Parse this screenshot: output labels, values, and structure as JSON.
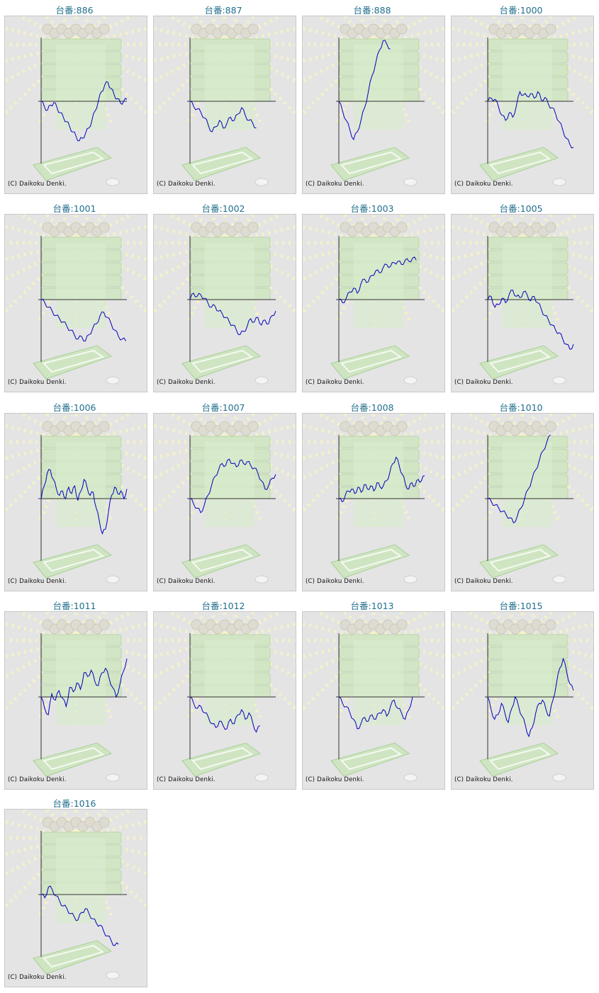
{
  "copyright": "(C) Daikoku Denki.",
  "colors": {
    "title": "#1f6e8c",
    "line": "#0000bb",
    "axis": "#333333",
    "panel_bg": "#e4e4e4"
  },
  "chart_data": [
    {
      "type": "line",
      "title": "台番:886",
      "ylim": [
        -100,
        100
      ],
      "values": [
        0,
        -8,
        -14,
        -6,
        -2,
        -10,
        -18,
        -25,
        -32,
        -40,
        -48,
        -55,
        -62,
        -58,
        -50,
        -42,
        -30,
        -15,
        0,
        15,
        25,
        30,
        20,
        10,
        4,
        -3,
        0,
        3
      ]
    },
    {
      "type": "line",
      "title": "台番:887",
      "ylim": [
        -100,
        100
      ],
      "values": [
        0,
        -8,
        -12,
        -18,
        -26,
        -38,
        -48,
        -40,
        -30,
        -42,
        -35,
        -25,
        -30,
        -20,
        -10,
        -22,
        -30,
        -34,
        -42
      ]
    },
    {
      "type": "line",
      "title": "台番:888",
      "ylim": [
        -100,
        100
      ],
      "values": [
        0,
        -15,
        -30,
        -45,
        -60,
        -48,
        -30,
        -10,
        15,
        40,
        60,
        80,
        95,
        90,
        82
      ]
    },
    {
      "type": "line",
      "title": "台番:1000",
      "ylim": [
        -100,
        100
      ],
      "values": [
        0,
        5,
        3,
        -8,
        -22,
        -30,
        -18,
        -25,
        -8,
        15,
        10,
        8,
        12,
        5,
        15,
        2,
        6,
        -5,
        -10,
        -20,
        -32,
        -45,
        -58,
        -68,
        -72
      ]
    },
    {
      "type": "line",
      "title": "台番:1001",
      "ylim": [
        -100,
        100
      ],
      "values": [
        0,
        -5,
        -12,
        -18,
        -25,
        -30,
        -35,
        -42,
        -48,
        -55,
        -62,
        -58,
        -65,
        -55,
        -45,
        -38,
        -25,
        -20,
        -28,
        -38,
        -48,
        -58,
        -62,
        -65
      ]
    },
    {
      "type": "line",
      "title": "台番:1002",
      "ylim": [
        -100,
        100
      ],
      "values": [
        0,
        10,
        5,
        8,
        2,
        -5,
        -12,
        -10,
        -18,
        -22,
        -28,
        -35,
        -40,
        -48,
        -55,
        -50,
        -42,
        -30,
        -35,
        -28,
        -40,
        -32,
        -38,
        -25,
        -18
      ]
    },
    {
      "type": "line",
      "title": "台番:1003",
      "ylim": [
        -100,
        100
      ],
      "values": [
        0,
        -5,
        2,
        12,
        18,
        10,
        25,
        32,
        28,
        38,
        45,
        42,
        50,
        55,
        52,
        58,
        60,
        55,
        62,
        60,
        65,
        62
      ]
    },
    {
      "type": "line",
      "title": "台番:1005",
      "ylim": [
        -100,
        100
      ],
      "values": [
        0,
        5,
        -12,
        -8,
        2,
        -5,
        8,
        15,
        5,
        3,
        12,
        8,
        -2,
        5,
        -5,
        -15,
        -25,
        -32,
        -40,
        -48,
        -52,
        -62,
        -70,
        -78,
        -70
      ]
    },
    {
      "type": "line",
      "title": "台番:1006",
      "ylim": [
        -100,
        100
      ],
      "values": [
        0,
        20,
        40,
        45,
        30,
        15,
        5,
        12,
        0,
        18,
        8,
        20,
        -3,
        12,
        30,
        18,
        5,
        10,
        -15,
        -35,
        -55,
        -48,
        -20,
        5,
        18,
        8,
        12,
        0,
        15
      ]
    },
    {
      "type": "line",
      "title": "台番:1007",
      "ylim": [
        -100,
        100
      ],
      "values": [
        0,
        -8,
        -15,
        -22,
        -10,
        5,
        20,
        35,
        45,
        55,
        52,
        62,
        55,
        50,
        60,
        55,
        58,
        52,
        48,
        40,
        28,
        15,
        20,
        32,
        38
      ]
    },
    {
      "type": "line",
      "title": "台番:1008",
      "ylim": [
        -100,
        100
      ],
      "values": [
        0,
        -5,
        5,
        12,
        15,
        8,
        18,
        10,
        22,
        15,
        20,
        12,
        25,
        18,
        20,
        28,
        40,
        55,
        65,
        52,
        38,
        22,
        15,
        25,
        20,
        30,
        28,
        36
      ]
    },
    {
      "type": "line",
      "title": "台番:1010",
      "ylim": [
        -100,
        100
      ],
      "values": [
        0,
        -5,
        -10,
        -15,
        -20,
        -25,
        -30,
        -38,
        -28,
        -15,
        0,
        15,
        30,
        45,
        60,
        75,
        88,
        100
      ]
    },
    {
      "type": "line",
      "title": "台番:1011",
      "ylim": [
        -100,
        100
      ],
      "values": [
        0,
        -18,
        -28,
        5,
        -5,
        10,
        -2,
        -15,
        15,
        8,
        22,
        12,
        38,
        32,
        42,
        25,
        18,
        38,
        45,
        30,
        15,
        0,
        18,
        40,
        60
      ]
    },
    {
      "type": "line",
      "title": "台番:1012",
      "ylim": [
        -100,
        100
      ],
      "values": [
        0,
        -10,
        -18,
        -15,
        -25,
        -32,
        -42,
        -48,
        -38,
        -45,
        -50,
        -35,
        -42,
        -28,
        -20,
        -35,
        -25,
        -40,
        -55,
        -45
      ]
    },
    {
      "type": "line",
      "title": "台番:1013",
      "ylim": [
        -100,
        100
      ],
      "values": [
        0,
        -10,
        -15,
        -25,
        -35,
        -50,
        -42,
        -32,
        -38,
        -28,
        -35,
        -25,
        -20,
        -30,
        -15,
        -5,
        -18,
        -25,
        -35,
        -20,
        0
      ]
    },
    {
      "type": "line",
      "title": "台番:1015",
      "ylim": [
        -100,
        100
      ],
      "values": [
        0,
        -20,
        -35,
        -28,
        -10,
        -25,
        -40,
        -18,
        0,
        -15,
        -30,
        -45,
        -62,
        -48,
        -25,
        -10,
        -5,
        -20,
        -30,
        -5,
        20,
        45,
        60,
        40,
        20,
        10
      ]
    },
    {
      "type": "line",
      "title": "台番:1016",
      "ylim": [
        -100,
        100
      ],
      "values": [
        0,
        -5,
        12,
        8,
        -2,
        -10,
        -18,
        -22,
        -30,
        -35,
        -40,
        -28,
        -22,
        -30,
        -38,
        -45,
        -48,
        -58,
        -65,
        -72,
        -80,
        -78
      ]
    }
  ]
}
